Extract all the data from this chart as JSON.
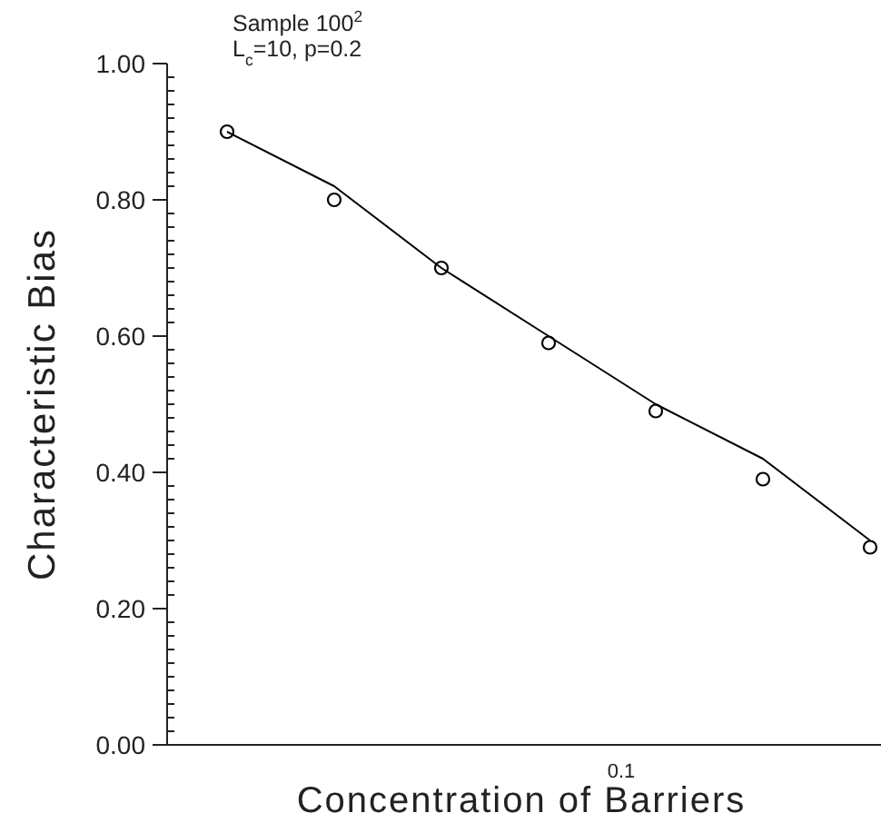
{
  "chart_data": {
    "type": "scatter",
    "xlabel": "Concentration of Barriers",
    "ylabel": "Characteristic Bias",
    "annotations": [
      "Sample 100$^{2}$",
      "L$_{c}$=10,  p=0.2",
      "0.1"
    ],
    "categories": [
      null,
      null,
      null,
      null,
      null,
      null,
      null
    ],
    "marker": "circle",
    "grid": false,
    "ylim": [
      0,
      1
    ],
    "yticks": [
      "0.00",
      {
        "value": 0.02,
        "label": null
      },
      {
        "value": 0.04,
        "label": null
      },
      {
        "value": 0.06,
        "label": null
      },
      {
        "value": 0.08,
        "label": null
      },
      {
        "value": 0.1,
        "label": null
      },
      {
        "value": 0.12,
        "label": null
      },
      {
        "value": 0.14,
        "label": null
      },
      {
        "value": 0.16,
        "label": null
      },
      {
        "value": 0.18,
        "label": null
      },
      {
        "value": 0.2,
        "label": "0.20"
      },
      {
        "value": 0.22,
        "label": null
      },
      {
        "value": 0.24,
        "label": null
      },
      {
        "value": 0.26,
        "label": null
      },
      {
        "value": 0.28,
        "label": null
      },
      {
        "value": 0.3,
        "label": null
      },
      {
        "value": 0.32,
        "label": null
      },
      {
        "value": 0.34,
        "label": null
      },
      {
        "value": 0.36,
        "label": null
      },
      {
        "value": 0.38,
        "label": null
      },
      {
        "value": 0.4,
        "label": "0.40"
      },
      {
        "value": 0.42,
        "label": null
      },
      {
        "value": 0.44,
        "label": null
      },
      {
        "value": 0.46,
        "label": null
      },
      {
        "value": 0.48,
        "label": null
      },
      {
        "value": 0.5,
        "label": null
      },
      {
        "value": 0.52,
        "label": null
      },
      {
        "value": 0.54,
        "label": null
      },
      {
        "value": 0.56,
        "label": null
      },
      {
        "value": 0.58,
        "label": null
      },
      {
        "value": 0.6,
        "label": "0.60"
      },
      {
        "value": 0.62,
        "label": null
      },
      {
        "value": 0.64,
        "label": null
      },
      {
        "value": 0.66,
        "label": null
      },
      {
        "value": 0.68,
        "label": null
      },
      {
        "value": 0.7,
        "label": null
      },
      {
        "value": 0.72,
        "label": null
      },
      {
        "value": 0.74,
        "label": null
      },
      {
        "value": 0.76,
        "label": null
      },
      {
        "value": 0.78,
        "label": null
      },
      {
        "value": 0.8,
        "label": "0.80"
      },
      {
        "value": 0.82,
        "label": null
      },
      {
        "value": 0.84,
        "label": null
      },
      {
        "value": 0.86,
        "label": null
      },
      {
        "value": 0.88,
        "label": null
      },
      {
        "value": 0.9,
        "label": null
      },
      {
        "value": 0.92,
        "label": null
      },
      {
        "value": 0.94,
        "label": null
      },
      {
        "value": 0.96,
        "label": null
      },
      {
        "value": 0.98,
        "label": null
      },
      {
        "value": 1,
        "label": "1.00"
      }
    ],
    "series": [
      {
        "color": "#000000",
        "values": [
          0.9,
          0.8,
          0.7,
          0.59,
          0.49,
          0.39,
          0.29
        ]
      },
      {
        "type": "line",
        "marker": "none",
        "color": "#000000",
        "values": [
          0.9,
          0.82,
          0.7,
          0.6,
          0.5,
          0.42,
          0.3
        ]
      }
    ]
  }
}
